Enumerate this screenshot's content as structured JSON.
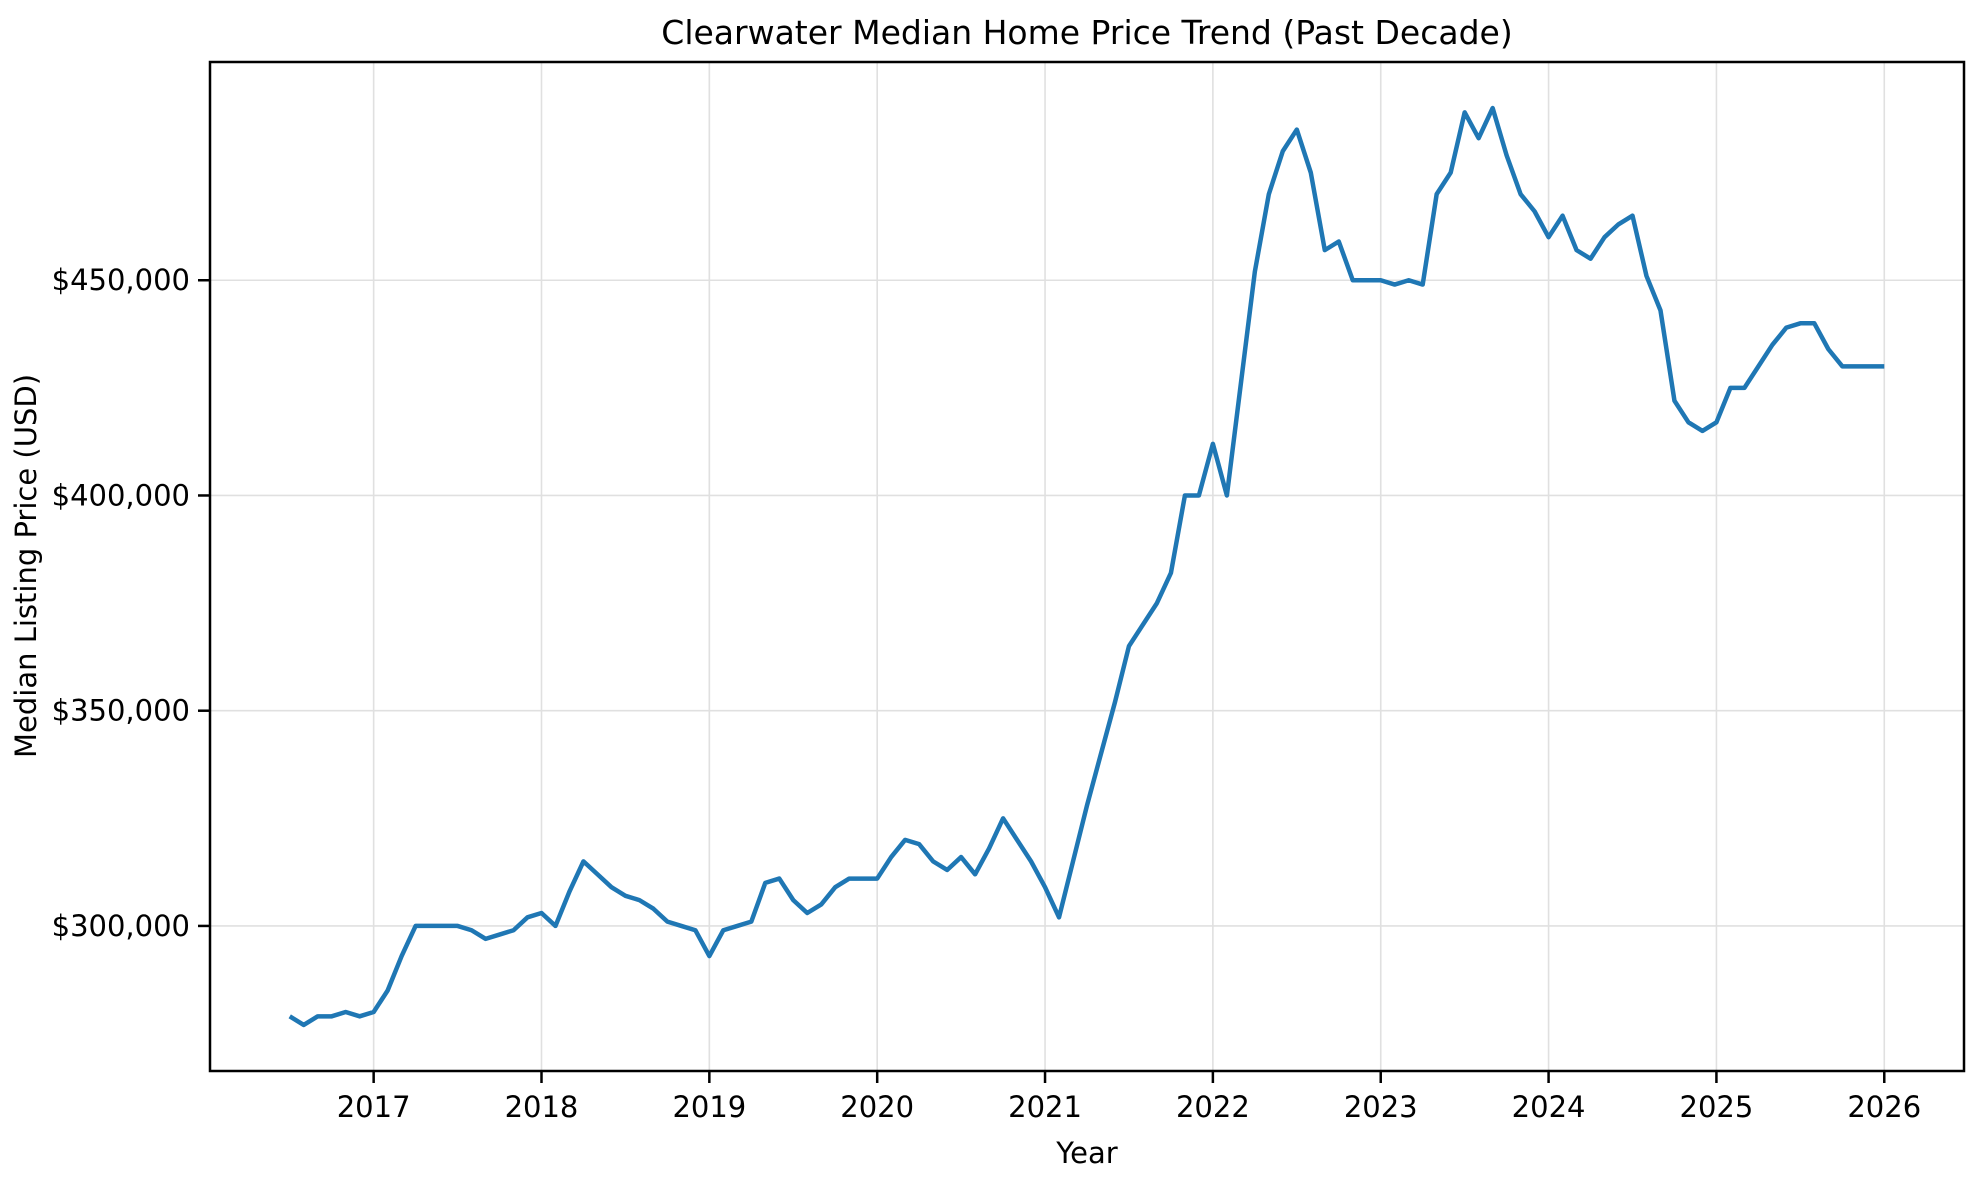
{
  "page": {
    "background_color": "#ffffff",
    "text_color": "#000000"
  },
  "chart_data": {
    "type": "line",
    "title": "Clearwater Median Home Price Trend (Past Decade)",
    "xlabel": "Year",
    "ylabel": "Median Listing Price (USD)",
    "legend": "none",
    "grid": true,
    "grid_color": "#e0e0e0",
    "spine_color": "#000000",
    "line_color": "#1f77b4",
    "line_width": 4.5,
    "x_frequency": "monthly",
    "x_start": "2016-07",
    "x_end": "2026-01",
    "xlim": [
      2016.025,
      2026.475
    ],
    "ylim": [
      266300,
      500700
    ],
    "x_ticks": [
      2017,
      2018,
      2019,
      2020,
      2021,
      2022,
      2023,
      2024,
      2025,
      2026
    ],
    "x_tick_labels": [
      "2017",
      "2018",
      "2019",
      "2020",
      "2021",
      "2022",
      "2023",
      "2024",
      "2025",
      "2026"
    ],
    "y_ticks": [
      300000,
      350000,
      400000,
      450000
    ],
    "y_tick_labels": [
      "$300,000",
      "$350,000",
      "$400,000",
      "$450,000"
    ],
    "x": [
      2016.5,
      2016.5833,
      2016.6667,
      2016.75,
      2016.8333,
      2016.9167,
      2017.0,
      2017.0833,
      2017.1667,
      2017.25,
      2017.3333,
      2017.4167,
      2017.5,
      2017.5833,
      2017.6667,
      2017.75,
      2017.8333,
      2017.9167,
      2018.0,
      2018.0833,
      2018.1667,
      2018.25,
      2018.3333,
      2018.4167,
      2018.5,
      2018.5833,
      2018.6667,
      2018.75,
      2018.8333,
      2018.9167,
      2019.0,
      2019.0833,
      2019.1667,
      2019.25,
      2019.3333,
      2019.4167,
      2019.5,
      2019.5833,
      2019.6667,
      2019.75,
      2019.8333,
      2019.9167,
      2020.0,
      2020.0833,
      2020.1667,
      2020.25,
      2020.3333,
      2020.4167,
      2020.5,
      2020.5833,
      2020.6667,
      2020.75,
      2020.8333,
      2020.9167,
      2021.0,
      2021.0833,
      2021.1667,
      2021.25,
      2021.3333,
      2021.4167,
      2021.5,
      2021.5833,
      2021.6667,
      2021.75,
      2021.8333,
      2021.9167,
      2022.0,
      2022.0833,
      2022.1667,
      2022.25,
      2022.3333,
      2022.4167,
      2022.5,
      2022.5833,
      2022.6667,
      2022.75,
      2022.8333,
      2022.9167,
      2023.0,
      2023.0833,
      2023.1667,
      2023.25,
      2023.3333,
      2023.4167,
      2023.5,
      2023.5833,
      2023.6667,
      2023.75,
      2023.8333,
      2023.9167,
      2024.0,
      2024.0833,
      2024.1667,
      2024.25,
      2024.3333,
      2024.4167,
      2024.5,
      2024.5833,
      2024.6667,
      2024.75,
      2024.8333,
      2024.9167,
      2025.0,
      2025.0833,
      2025.1667,
      2025.25,
      2025.3333,
      2025.4167,
      2025.5,
      2025.5833,
      2025.6667,
      2025.75,
      2025.8333,
      2025.9167,
      2026.0
    ],
    "values": [
      279000,
      277000,
      279000,
      279000,
      280000,
      279000,
      280000,
      285000,
      293000,
      300000,
      300000,
      300000,
      300000,
      299000,
      297000,
      298000,
      299000,
      302000,
      303000,
      300000,
      308000,
      315000,
      312000,
      309000,
      307000,
      306000,
      304000,
      301000,
      300000,
      299000,
      293000,
      299000,
      300000,
      301000,
      310000,
      311000,
      306000,
      303000,
      305000,
      309000,
      311000,
      311000,
      311000,
      316000,
      320000,
      319000,
      315000,
      313000,
      316000,
      312000,
      318000,
      325000,
      320000,
      315000,
      309000,
      302000,
      315000,
      328000,
      340000,
      352000,
      365000,
      370000,
      375000,
      382000,
      400000,
      400000,
      412000,
      400000,
      426000,
      452000,
      470000,
      480000,
      485000,
      475000,
      457000,
      459000,
      450000,
      450000,
      450000,
      449000,
      450000,
      449000,
      470000,
      475000,
      489000,
      483000,
      490000,
      479000,
      470000,
      466000,
      460000,
      465000,
      457000,
      455000,
      460000,
      463000,
      465000,
      451000,
      443000,
      422000,
      417000,
      415000,
      417000,
      425000,
      425000,
      430000,
      435000,
      439000,
      440000,
      440000,
      434000,
      430000,
      430000,
      430000,
      430000
    ]
  }
}
